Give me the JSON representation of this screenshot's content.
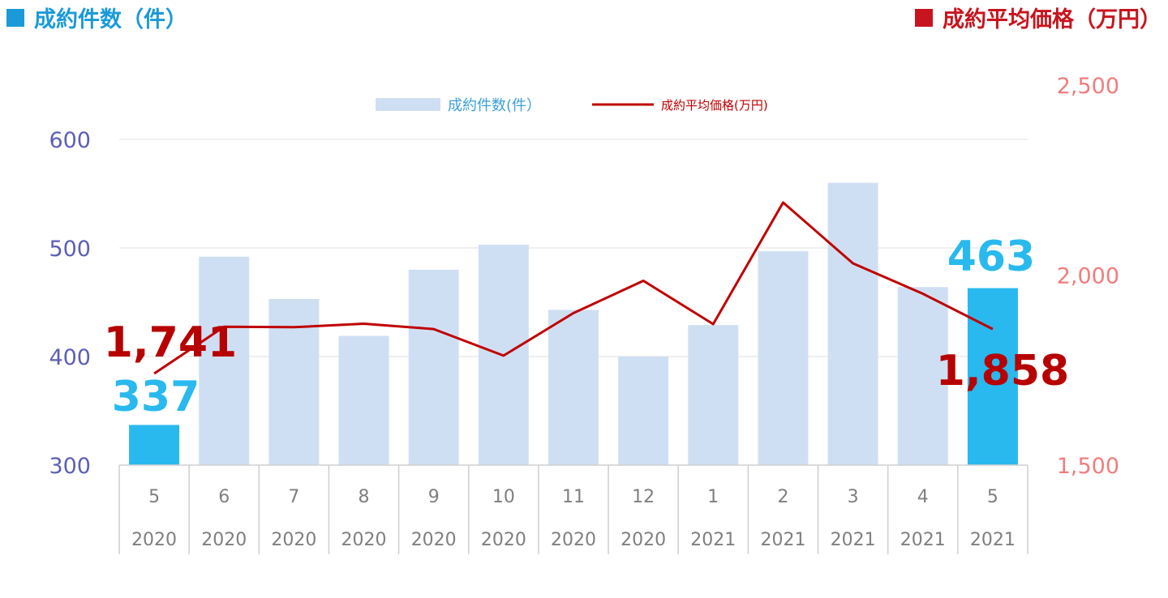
{
  "headers": {
    "left": "成約件数（件）",
    "right": "成約平均価格（万円）"
  },
  "colors": {
    "bar_default": "#cfdff3",
    "bar_highlight": "#29b9ee",
    "line": "#c00000",
    "left_axis": "#5b5fb8",
    "right_axis": "#f27c7c",
    "header_left": "#1a9ad9",
    "header_right": "#c8141e"
  },
  "chart_data": {
    "type": "bar",
    "categories": [
      {
        "month": "5",
        "year": "2020"
      },
      {
        "month": "6",
        "year": "2020"
      },
      {
        "month": "7",
        "year": "2020"
      },
      {
        "month": "8",
        "year": "2020"
      },
      {
        "month": "9",
        "year": "2020"
      },
      {
        "month": "10",
        "year": "2020"
      },
      {
        "month": "11",
        "year": "2020"
      },
      {
        "month": "12",
        "year": "2020"
      },
      {
        "month": "1",
        "year": "2021"
      },
      {
        "month": "2",
        "year": "2021"
      },
      {
        "month": "3",
        "year": "2021"
      },
      {
        "month": "4",
        "year": "2021"
      },
      {
        "month": "5",
        "year": "2021"
      }
    ],
    "series": [
      {
        "name": "成約件数(件）",
        "type": "bar",
        "axis": "left",
        "values": [
          337,
          492,
          453,
          419,
          480,
          503,
          443,
          400,
          429,
          497,
          560,
          464,
          463
        ],
        "highlight_indices": [
          0,
          12
        ]
      },
      {
        "name": "成約平均価格(万円)",
        "type": "line",
        "axis": "right",
        "values": [
          1741,
          1864,
          1863,
          1872,
          1858,
          1788,
          1900,
          1985,
          1871,
          2191,
          2031,
          1951,
          1858
        ]
      }
    ],
    "left_axis": {
      "ylim": [
        300,
        600
      ],
      "ticks": [
        "300",
        "400",
        "500",
        "600"
      ]
    },
    "right_axis": {
      "ylim": [
        1500,
        2500
      ],
      "ticks": [
        "1,500",
        "2,000",
        "2,500"
      ]
    },
    "annotations": [
      {
        "text": "337",
        "index": 0,
        "series": 0
      },
      {
        "text": "1,741",
        "index": 0,
        "series": 1
      },
      {
        "text": "463",
        "index": 12,
        "series": 0
      },
      {
        "text": "1,858",
        "index": 12,
        "series": 1
      }
    ],
    "grid": true,
    "legend_position": "top-center"
  }
}
